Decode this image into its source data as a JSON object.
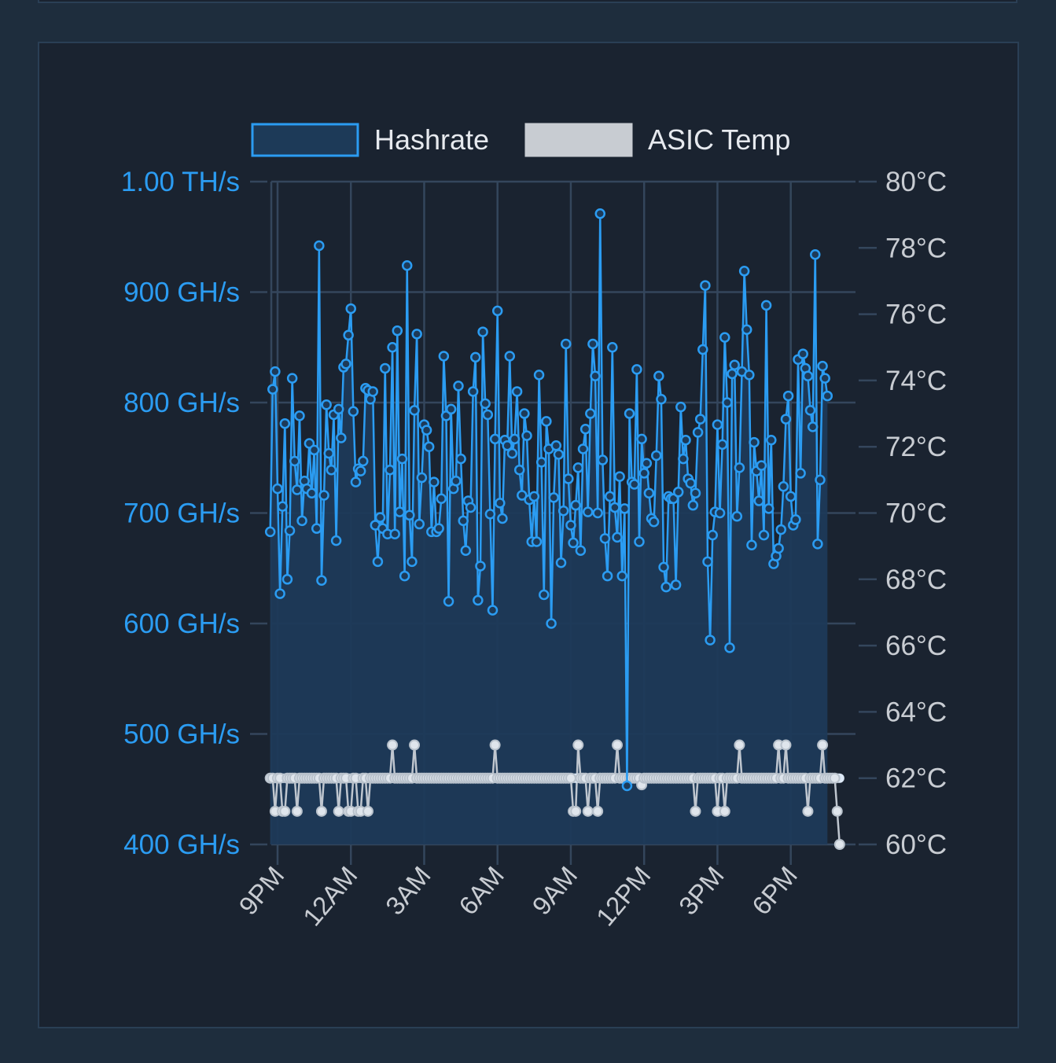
{
  "chart_data": {
    "type": "line",
    "legend": {
      "position": "top",
      "items": [
        {
          "name": "Hashrate",
          "color": "#2b9cf2",
          "fill": "#1d3a58"
        },
        {
          "name": "ASIC Temp",
          "color": "#c8ccd2",
          "fill": "#c8ccd2"
        }
      ]
    },
    "x_ticks": [
      "9PM",
      "12AM",
      "3AM",
      "6AM",
      "9AM",
      "12PM",
      "3PM",
      "6PM"
    ],
    "y_left": {
      "min": 400,
      "max": 1000,
      "unit": "GH/s",
      "ticks": [
        "400 GH/s",
        "500 GH/s",
        "600 GH/s",
        "700 GH/s",
        "800 GH/s",
        "900 GH/s",
        "1.00 TH/s"
      ]
    },
    "y_right": {
      "min": 60,
      "max": 80,
      "unit": "°C",
      "ticks": [
        "60°C",
        "62°C",
        "64°C",
        "66°C",
        "68°C",
        "70°C",
        "72°C",
        "74°C",
        "76°C",
        "78°C",
        "80°C"
      ]
    },
    "x_range_hours": [
      -0.3,
      23.9
    ],
    "grid": true,
    "series": [
      {
        "name": "Hashrate",
        "axis": "left",
        "step_hours": 0.1,
        "start_hour": -0.3,
        "values": [
          683,
          812,
          828,
          722,
          627,
          706,
          781,
          640,
          684,
          822,
          747,
          721,
          788,
          693,
          729,
          722,
          763,
          718,
          757,
          686,
          942,
          639,
          716,
          798,
          754,
          739,
          789,
          675,
          794,
          768,
          832,
          835,
          861,
          885,
          792,
          728,
          740,
          738,
          747,
          813,
          811,
          803,
          810,
          689,
          656,
          696,
          686,
          831,
          681,
          739,
          850,
          681,
          865,
          701,
          749,
          643,
          924,
          698,
          656,
          793,
          862,
          690,
          732,
          780,
          775,
          760,
          683,
          728,
          683,
          686,
          713,
          842,
          788,
          620,
          794,
          722,
          729,
          815,
          749,
          693,
          666,
          711,
          705,
          810,
          841,
          621,
          652,
          864,
          799,
          789,
          699,
          612,
          767,
          883,
          709,
          695,
          766,
          761,
          842,
          754,
          767,
          810,
          739,
          716,
          790,
          770,
          712,
          674,
          715,
          674,
          825,
          746,
          626,
          783,
          758,
          600,
          714,
          761,
          753,
          655,
          702,
          853,
          731,
          689,
          673,
          707,
          741,
          666,
          758,
          776,
          701,
          790,
          853,
          824,
          700,
          971,
          748,
          677,
          643,
          715,
          850,
          705,
          678,
          733,
          643,
          704,
          453,
          790,
          728,
          726,
          830,
          674,
          767,
          736,
          745,
          718,
          695,
          692,
          752,
          824,
          803,
          651,
          633,
          715,
          713,
          713,
          635,
          719,
          796,
          749,
          766,
          731,
          727,
          707,
          718,
          773,
          785,
          848,
          906,
          656,
          585,
          680,
          701,
          780,
          700,
          762,
          859,
          800,
          578,
          826,
          834,
          697,
          741,
          828,
          919,
          866,
          825,
          671,
          764,
          738,
          711,
          743,
          680,
          888,
          704,
          766,
          654,
          661,
          668,
          685,
          724,
          785,
          806,
          715,
          689,
          694,
          839,
          736,
          844,
          831,
          824,
          793,
          778,
          934,
          672,
          730,
          833,
          822,
          806
        ]
      },
      {
        "name": "ASIC Temp",
        "axis": "right",
        "step_hours": 0.1,
        "start_hour": -0.3,
        "values": [
          62,
          62,
          61,
          62,
          62,
          61,
          61,
          62,
          62,
          62,
          62,
          61,
          62,
          62,
          62,
          62,
          62,
          62,
          62,
          62,
          62,
          61,
          62,
          62,
          62,
          62,
          62,
          62,
          61,
          62,
          62,
          62,
          61,
          61,
          62,
          62,
          61,
          61,
          62,
          62,
          61,
          62,
          62,
          62,
          62,
          62,
          62,
          62,
          62,
          62,
          63,
          62,
          62,
          62,
          62,
          62,
          62,
          62,
          62,
          63,
          62,
          62,
          62,
          62,
          62,
          62,
          62,
          62,
          62,
          62,
          62,
          62,
          62,
          62,
          62,
          62,
          62,
          62,
          62,
          62,
          62,
          62,
          62,
          62,
          62,
          62,
          62,
          62,
          62,
          62,
          62,
          62,
          63,
          62,
          62,
          62,
          62,
          62,
          62,
          62,
          62,
          62,
          62,
          62,
          62,
          62,
          62,
          62,
          62,
          62,
          62,
          62,
          62,
          62,
          62,
          62,
          62,
          62,
          62,
          62,
          62,
          62,
          62,
          62,
          61,
          61,
          63,
          62,
          62,
          62,
          61,
          62,
          62,
          62,
          61,
          62,
          62,
          62,
          62,
          62,
          62,
          62,
          63,
          62,
          62,
          62,
          62,
          62,
          62,
          62,
          62,
          62,
          61.8,
          62,
          62,
          62,
          62,
          62,
          62,
          62,
          62,
          62,
          62,
          62,
          62,
          62,
          62,
          62,
          62,
          62,
          62,
          62,
          62,
          62,
          61,
          62,
          62,
          62,
          62,
          62,
          62,
          62,
          62,
          61,
          62,
          62,
          61,
          62,
          62,
          62,
          62,
          62,
          63,
          62,
          62,
          62,
          62,
          62,
          62,
          62,
          62,
          62,
          62,
          62,
          62,
          62,
          62,
          62,
          63,
          62,
          62,
          63,
          62,
          62,
          62,
          62,
          62,
          62,
          62,
          62,
          61,
          62,
          62,
          62,
          62,
          62,
          63,
          62,
          62,
          62,
          62,
          62,
          61,
          60
        ]
      }
    ]
  }
}
